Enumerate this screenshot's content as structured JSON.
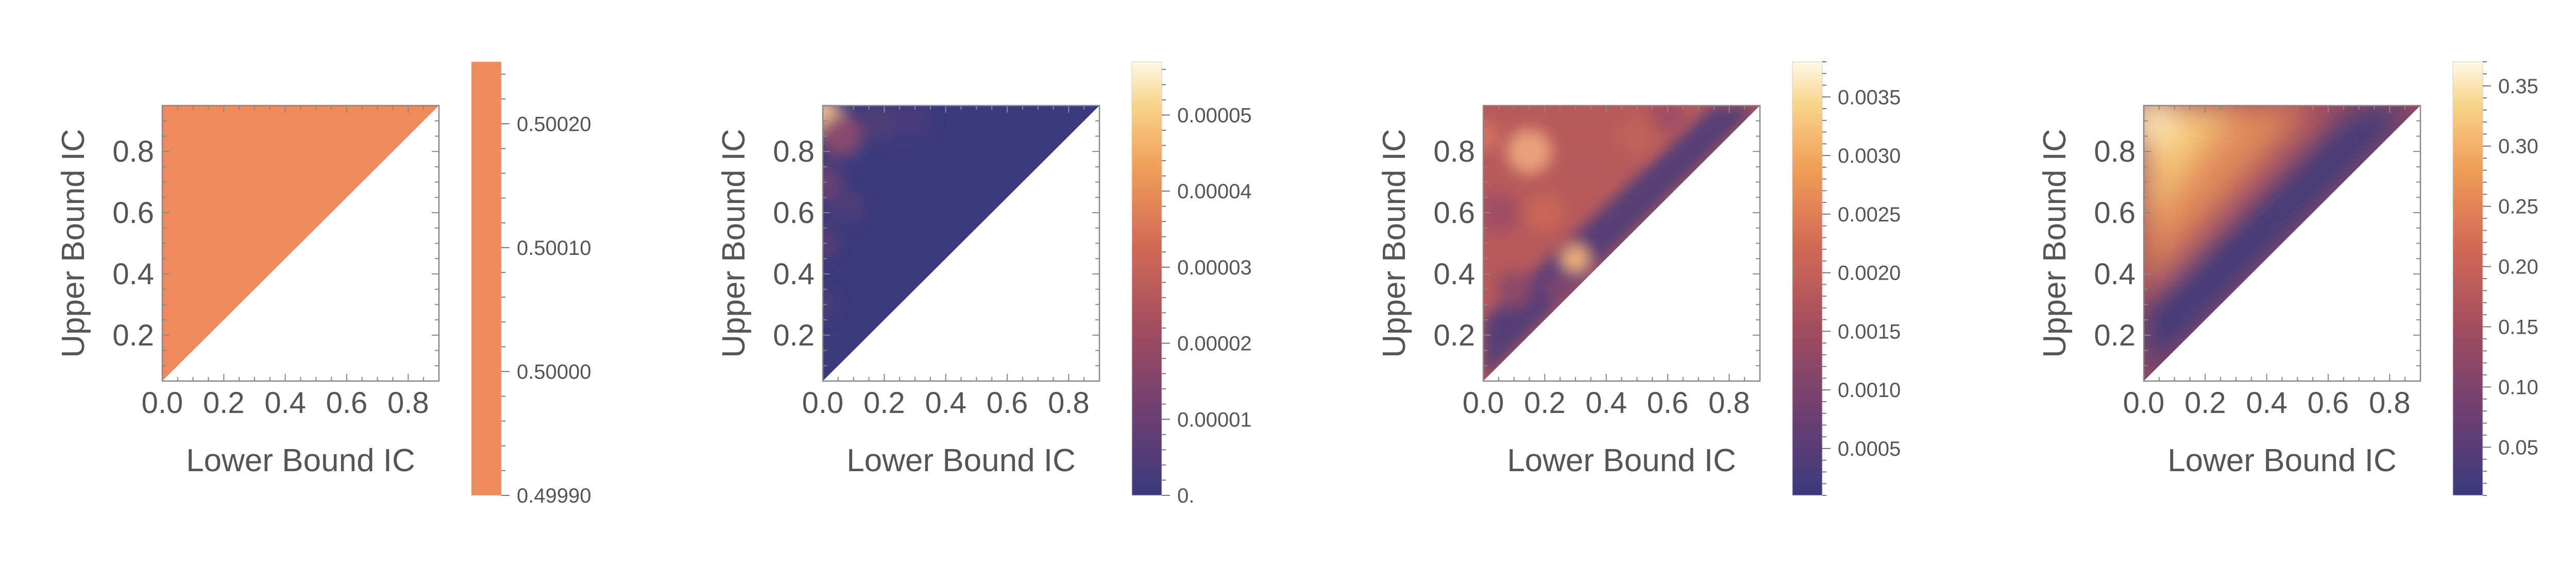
{
  "chart_data": [
    {
      "type": "heatmap",
      "region": "triangle-above-diagonal",
      "xlabel": "Lower Bound IC",
      "ylabel": "Upper Bound IC",
      "xlim": [
        0.0,
        0.9
      ],
      "ylim": [
        0.05,
        0.95
      ],
      "xticks": [
        "0.0",
        "0.2",
        "0.4",
        "0.6",
        "0.8"
      ],
      "yticks": [
        "0.2",
        "0.4",
        "0.6",
        "0.8"
      ],
      "color_range": [
        0.4999,
        0.50025
      ],
      "colorbar_ticks": [
        "0.49990",
        "0.50000",
        "0.50010",
        "0.50020"
      ],
      "colorbar_tick_values": [
        0.4999,
        0.5,
        0.5001,
        0.5002
      ],
      "fill": "uniform 0.5000 (solid orange)"
    },
    {
      "type": "heatmap",
      "region": "triangle-above-diagonal",
      "xlabel": "Lower Bound IC",
      "ylabel": "Upper Bound IC",
      "xlim": [
        0.0,
        0.9
      ],
      "ylim": [
        0.05,
        0.95
      ],
      "xticks": [
        "0.0",
        "0.2",
        "0.4",
        "0.6",
        "0.8"
      ],
      "yticks": [
        "0.2",
        "0.4",
        "0.6",
        "0.8"
      ],
      "color_range": [
        0.0,
        5.7e-05
      ],
      "colorbar_ticks": [
        "0.",
        "0.00001",
        "0.00002",
        "0.00003",
        "0.00004",
        "0.00005"
      ],
      "colorbar_tick_values": [
        0.0,
        1e-05,
        2e-05,
        3e-05,
        4e-05,
        5e-05
      ],
      "fill": "mostly 0 (dark blue), brighter near lower bound 0 and upper bound near 0.9"
    },
    {
      "type": "heatmap",
      "region": "triangle-above-diagonal",
      "xlabel": "Lower Bound IC",
      "ylabel": "Upper Bound IC",
      "xlim": [
        0.0,
        0.9
      ],
      "ylim": [
        0.05,
        0.95
      ],
      "xticks": [
        "0.0",
        "0.2",
        "0.4",
        "0.6",
        "0.8"
      ],
      "yticks": [
        "0.2",
        "0.4",
        "0.6",
        "0.8"
      ],
      "color_range": [
        0.0001,
        0.0038
      ],
      "colorbar_ticks": [
        "0.0005",
        "0.0010",
        "0.0015",
        "0.0020",
        "0.0025",
        "0.0030",
        "0.0035"
      ],
      "colorbar_tick_values": [
        0.0005,
        0.001,
        0.0015,
        0.002,
        0.0025,
        0.003,
        0.0035
      ],
      "fill": "mid values across interior, low along diagonal, hotspots near (0.15,0.8) and (0.3,0.45)"
    },
    {
      "type": "heatmap",
      "region": "triangle-above-diagonal",
      "xlabel": "Lower Bound IC",
      "ylabel": "Upper Bound IC",
      "xlim": [
        0.0,
        0.9
      ],
      "ylim": [
        0.05,
        0.95
      ],
      "xticks": [
        "0.0",
        "0.2",
        "0.4",
        "0.6",
        "0.8"
      ],
      "yticks": [
        "0.2",
        "0.4",
        "0.6",
        "0.8"
      ],
      "color_range": [
        0.01,
        0.37
      ],
      "colorbar_ticks": [
        "0.05",
        "0.10",
        "0.15",
        "0.20",
        "0.25",
        "0.30",
        "0.35"
      ],
      "colorbar_tick_values": [
        0.05,
        0.1,
        0.15,
        0.2,
        0.25,
        0.3,
        0.35
      ],
      "fill": "increases with gap between upper and lower bound; highest at lower bound 0, upper bound 0.95"
    }
  ],
  "colors": {
    "uniform_fill": "#ef8a5d",
    "axis": "#888888",
    "text": "#555555",
    "gradient": [
      "#3a3a7c",
      "#6b3f73",
      "#a04c5f",
      "#d46a55",
      "#f0a058",
      "#f8d48a",
      "#fff9e6"
    ]
  }
}
